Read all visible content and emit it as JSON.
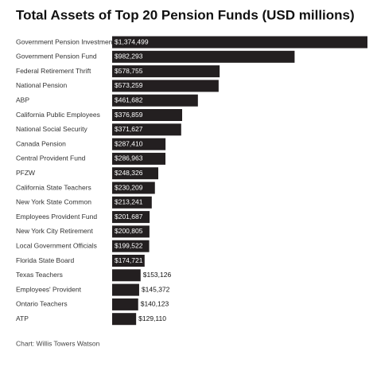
{
  "chart_data": {
    "type": "bar",
    "orientation": "horizontal",
    "title": "Total Assets of Top 20 Pension Funds (USD millions)",
    "source": "Chart: Willis Towers Watson",
    "color": "#231f20",
    "categories": [
      "Government Pension Investment",
      "Government Pension Fund",
      "Federal Retirement Thrift",
      "National Pension",
      "ABP",
      "California Public Employees",
      "National Social Security",
      "Canada Pension",
      "Central Provident Fund",
      "PFZW",
      "California State Teachers",
      "New York State Common",
      "Employees Provident Fund",
      "New York City Retirement",
      "Local Government Officials",
      "Florida State Board",
      "Texas Teachers",
      "Employees' Provident",
      "Ontario Teachers",
      "ATP"
    ],
    "values": [
      1374499,
      982293,
      578755,
      573259,
      461682,
      376859,
      371627,
      287410,
      286963,
      248326,
      230209,
      213241,
      201687,
      200805,
      199522,
      174721,
      153126,
      145372,
      140123,
      129110
    ],
    "value_labels": [
      "$1,374,499",
      "$982,293",
      "$578,755",
      "$573,259",
      "$461,682",
      "$376,859",
      "$371,627",
      "$287,410",
      "$286,963",
      "$248,326",
      "$230,209",
      "$213,241",
      "$201,687",
      "$200,805",
      "$199,522",
      "$174,721",
      "$153,126",
      "$145,372",
      "$140,123",
      "$129,110"
    ]
  }
}
